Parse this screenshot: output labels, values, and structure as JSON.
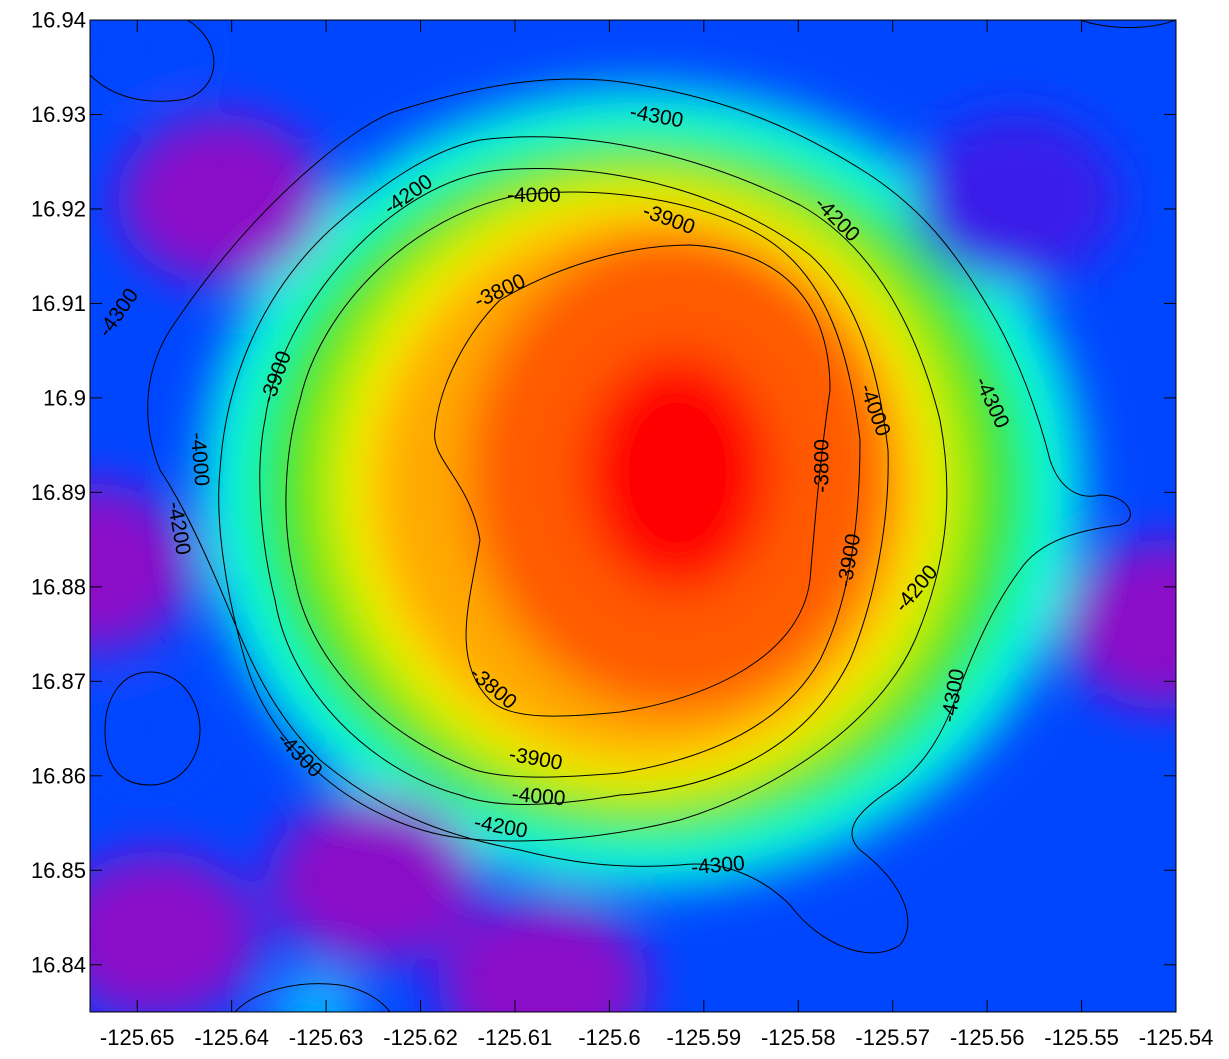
{
  "chart_data": {
    "type": "heatmap",
    "subtype": "filled contour map",
    "title": "",
    "xlabel": "",
    "ylabel": "",
    "xlim": [
      -125.655,
      -125.54
    ],
    "ylim": [
      16.835,
      16.94
    ],
    "x_ticks": [
      -125.65,
      -125.64,
      -125.63,
      -125.62,
      -125.61,
      -125.6,
      -125.59,
      -125.58,
      -125.57,
      -125.56,
      -125.55,
      -125.54
    ],
    "x_tick_labels": [
      "-125.65",
      "-125.64",
      "-125.63",
      "-125.62",
      "-125.61",
      "-125.6",
      "-125.59",
      "-125.58",
      "-125.57",
      "-125.56",
      "-125.55",
      "-125.54"
    ],
    "y_ticks": [
      16.84,
      16.85,
      16.86,
      16.87,
      16.88,
      16.89,
      16.9,
      16.91,
      16.92,
      16.93,
      16.94
    ],
    "y_tick_labels": [
      "16.84",
      "16.85",
      "16.86",
      "16.87",
      "16.88",
      "16.89",
      "16.9",
      "16.91",
      "16.92",
      "16.93",
      "16.94"
    ],
    "colormap": "rainbow (red = high, magenta = low)",
    "colormap_stops": [
      {
        "value": -4450,
        "color": "#8a10c8"
      },
      {
        "value": -4350,
        "color": "#3a1ae8"
      },
      {
        "value": -4280,
        "color": "#0046ff"
      },
      {
        "value": -4220,
        "color": "#00b4ff"
      },
      {
        "value": -4160,
        "color": "#00ffe6"
      },
      {
        "value": -4080,
        "color": "#28e628"
      },
      {
        "value": -4000,
        "color": "#a0e600"
      },
      {
        "value": -3950,
        "color": "#ffff00"
      },
      {
        "value": -3900,
        "color": "#ffaa00"
      },
      {
        "value": -3800,
        "color": "#ff5a00"
      },
      {
        "value": -3700,
        "color": "#ff0000"
      }
    ],
    "features": [
      {
        "type": "peak",
        "x": -125.597,
        "y": 16.892,
        "value": -3700
      },
      {
        "type": "low",
        "x": -125.655,
        "y": 16.882,
        "value": -4430
      },
      {
        "type": "low",
        "x": -125.541,
        "y": 16.876,
        "value": -4440
      },
      {
        "type": "low",
        "x": -125.625,
        "y": 16.849,
        "value": -4400
      },
      {
        "type": "low",
        "x": -125.607,
        "y": 16.838,
        "value": -4400
      },
      {
        "type": "low",
        "x": -125.648,
        "y": 16.843,
        "value": -4420
      },
      {
        "type": "low",
        "x": -125.557,
        "y": 16.921,
        "value": -4350
      },
      {
        "type": "low",
        "x": -125.641,
        "y": 16.921,
        "value": -4380
      },
      {
        "type": "local_high",
        "x": -125.649,
        "y": 16.937,
        "value": -4230
      },
      {
        "type": "local_high",
        "x": -125.649,
        "y": 16.865,
        "value": -4250
      },
      {
        "type": "local_high",
        "x": -125.631,
        "y": 16.835,
        "value": -4200
      }
    ],
    "contour_levels": [
      -4300,
      -4200,
      -4000,
      -3900,
      -3800
    ],
    "contour_labels": [
      {
        "text": "-4300",
        "x": -125.595,
        "y": 16.9298,
        "angle": 10
      },
      {
        "text": "-4300",
        "x": -125.652,
        "y": 16.909,
        "angle": -55
      },
      {
        "text": "-4300",
        "x": -125.5595,
        "y": 16.8995,
        "angle": 65
      },
      {
        "text": "-4300",
        "x": -125.5636,
        "y": 16.8685,
        "angle": -80
      },
      {
        "text": "-4300",
        "x": -125.6328,
        "y": 16.8622,
        "angle": 45
      },
      {
        "text": "-4300",
        "x": -125.5885,
        "y": 16.8505,
        "angle": -5
      },
      {
        "text": "-4200",
        "x": -125.6213,
        "y": 16.9215,
        "angle": -35
      },
      {
        "text": "-4200",
        "x": -125.5759,
        "y": 16.9189,
        "angle": 45
      },
      {
        "text": "-4200",
        "x": -125.6456,
        "y": 16.8862,
        "angle": 80
      },
      {
        "text": "-4200",
        "x": -125.5675,
        "y": 16.8798,
        "angle": -50
      },
      {
        "text": "-4200",
        "x": -125.6115,
        "y": 16.8546,
        "angle": 10
      },
      {
        "text": "-4000",
        "x": -125.608,
        "y": 16.9214,
        "angle": 0
      },
      {
        "text": "-4000",
        "x": -125.6434,
        "y": 16.8935,
        "angle": 85
      },
      {
        "text": "-4000",
        "x": -125.5719,
        "y": 16.8987,
        "angle": 70
      },
      {
        "text": "-4000",
        "x": -125.6075,
        "y": 16.8578,
        "angle": 5
      },
      {
        "text": "-3900",
        "x": -125.5937,
        "y": 16.9189,
        "angle": 20
      },
      {
        "text": "-3900",
        "x": -125.6353,
        "y": 16.9022,
        "angle": -70
      },
      {
        "text": "-3900",
        "x": -125.5746,
        "y": 16.8828,
        "angle": -80
      },
      {
        "text": "-3900",
        "x": -125.6078,
        "y": 16.8618,
        "angle": 10
      },
      {
        "text": "-3800",
        "x": -125.6116,
        "y": 16.9113,
        "angle": -25
      },
      {
        "text": "-3800",
        "x": -125.5775,
        "y": 16.8928,
        "angle": -90
      },
      {
        "text": "-3800",
        "x": -125.6123,
        "y": 16.8693,
        "angle": 40
      }
    ],
    "grid": false,
    "legend": "none"
  }
}
